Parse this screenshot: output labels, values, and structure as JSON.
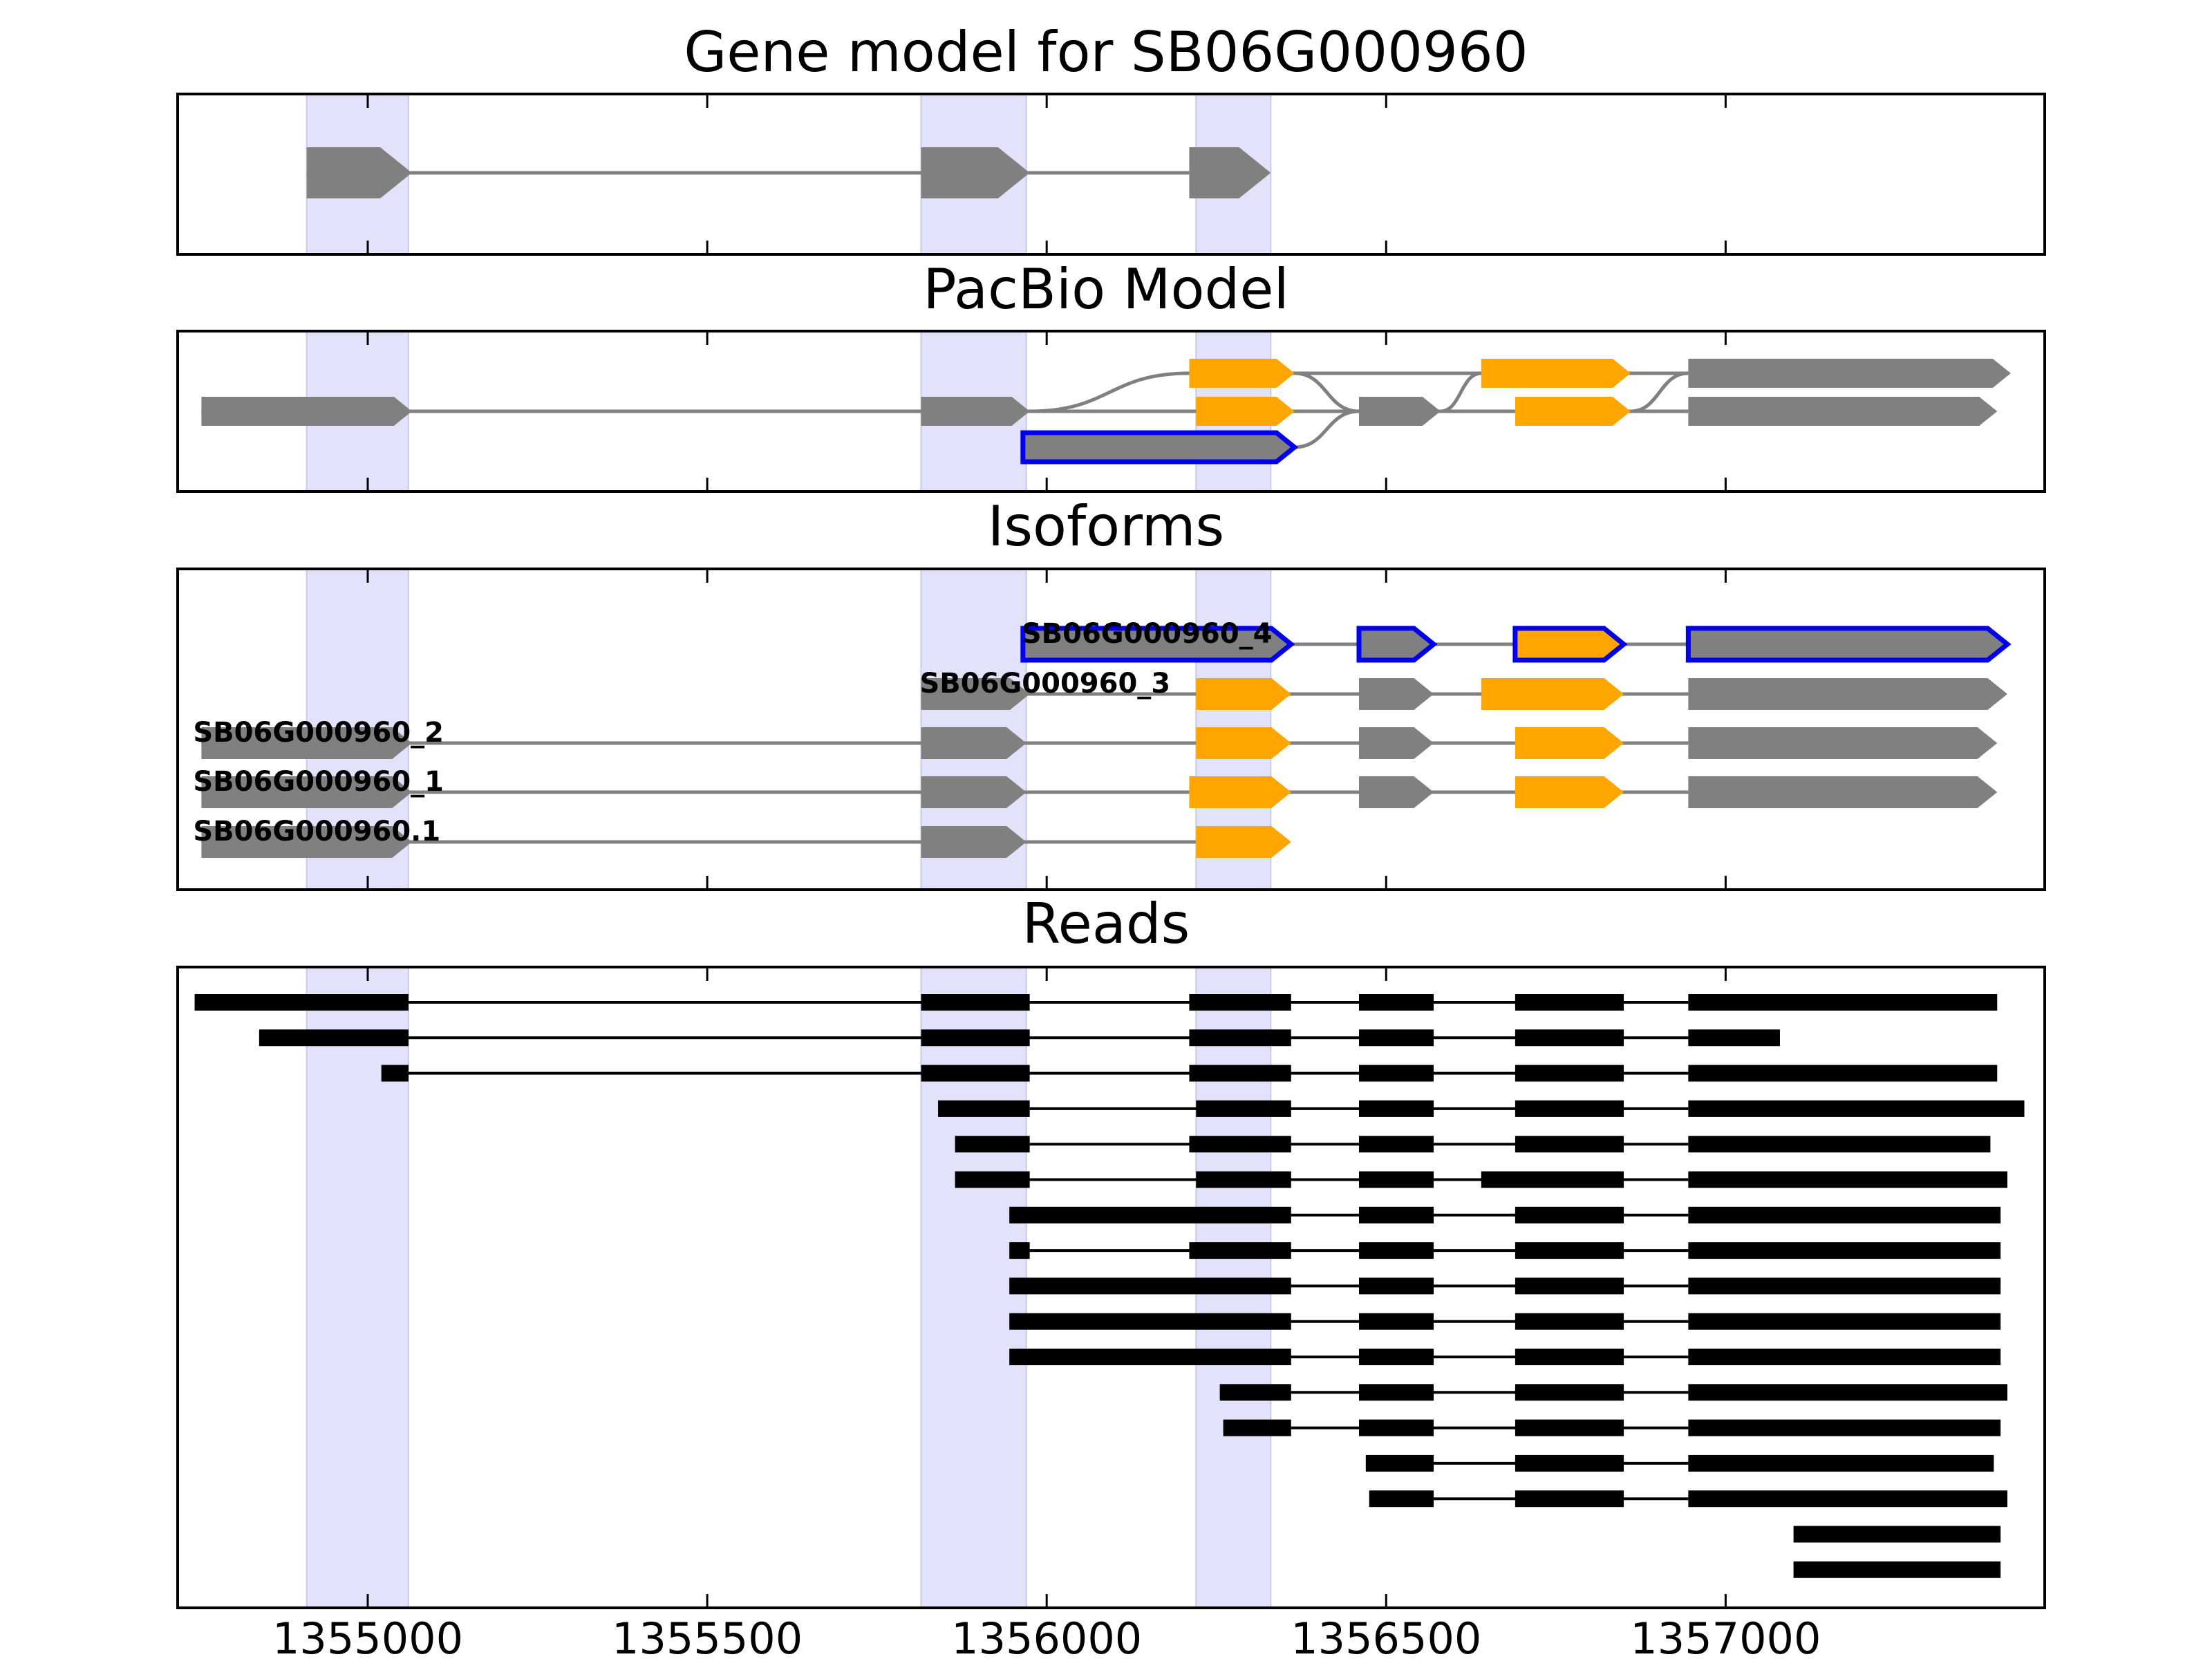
{
  "colors": {
    "highlight": "#e2e2fb",
    "exon_gray": "#808080",
    "exon_orange": "#ffa500",
    "selected_outline": "#0000ee",
    "read_black": "#000000",
    "intron_gray": "#808080"
  },
  "chart_data": {
    "type": "gene-model-tracks",
    "x_axis": {
      "xlim": [
        1354720,
        1357470
      ],
      "ticks": [
        1355000,
        1355500,
        1356000,
        1356500,
        1357000
      ],
      "tick_labels": [
        "1355000",
        "1355500",
        "1356000",
        "1356500",
        "1357000"
      ]
    },
    "highlight_regions": [
      [
        1354910,
        1355060
      ],
      [
        1355815,
        1355970
      ],
      [
        1356220,
        1356330
      ]
    ],
    "panels": [
      {
        "id": "gene",
        "title": "Gene model for SB06G000960",
        "rows": [
          {
            "strand": "+",
            "exons": [
              [
                1354910,
                1355065,
                "gray"
              ],
              [
                1355815,
                1355975,
                "gray"
              ],
              [
                1356210,
                1356330,
                "gray"
              ]
            ]
          }
        ]
      },
      {
        "id": "pacbio",
        "title": "PacBio Model",
        "rows": [
          {
            "strand": "+",
            "exons": [
              [
                1356210,
                1356365,
                "orange"
              ],
              [
                1356640,
                1356860,
                "orange"
              ],
              [
                1356945,
                1357420,
                "gray"
              ]
            ]
          },
          {
            "strand": "+",
            "exons": [
              [
                1354755,
                1355065,
                "gray"
              ],
              [
                1355815,
                1355975,
                "gray"
              ],
              [
                1356220,
                1356365,
                "orange"
              ],
              [
                1356460,
                1356580,
                "gray"
              ],
              [
                1356690,
                1356860,
                "orange"
              ],
              [
                1356945,
                1357400,
                "gray"
              ]
            ]
          },
          {
            "strand": "+",
            "selected": true,
            "exons": [
              [
                1355965,
                1356365,
                "gray"
              ]
            ]
          }
        ]
      },
      {
        "id": "isoforms",
        "title": "Isoforms",
        "rows": [
          {
            "label": "SB06G000960_4",
            "selected": true,
            "exons": [
              [
                1355965,
                1356360,
                "gray"
              ],
              [
                1356460,
                1356570,
                "gray"
              ],
              [
                1356690,
                1356850,
                "orange"
              ],
              [
                1356945,
                1357415,
                "gray"
              ]
            ]
          },
          {
            "label": "SB06G000960_3",
            "exons": [
              [
                1355815,
                1355975,
                "gray"
              ],
              [
                1356220,
                1356360,
                "orange"
              ],
              [
                1356460,
                1356570,
                "gray"
              ],
              [
                1356640,
                1356850,
                "orange"
              ],
              [
                1356945,
                1357415,
                "gray"
              ]
            ]
          },
          {
            "label": "SB06G000960_2",
            "exons": [
              [
                1354755,
                1355065,
                "gray"
              ],
              [
                1355815,
                1355970,
                "gray"
              ],
              [
                1356220,
                1356360,
                "orange"
              ],
              [
                1356460,
                1356570,
                "gray"
              ],
              [
                1356690,
                1356850,
                "orange"
              ],
              [
                1356945,
                1357400,
                "gray"
              ]
            ]
          },
          {
            "label": "SB06G000960_1",
            "exons": [
              [
                1354755,
                1355065,
                "gray"
              ],
              [
                1355815,
                1355970,
                "gray"
              ],
              [
                1356210,
                1356360,
                "orange"
              ],
              [
                1356460,
                1356570,
                "gray"
              ],
              [
                1356690,
                1356850,
                "orange"
              ],
              [
                1356945,
                1357400,
                "gray"
              ]
            ]
          },
          {
            "label": "SB06G000960.1",
            "exons": [
              [
                1354755,
                1355065,
                "gray"
              ],
              [
                1355815,
                1355970,
                "gray"
              ],
              [
                1356220,
                1356360,
                "orange"
              ]
            ]
          }
        ]
      },
      {
        "id": "reads",
        "title": "Reads",
        "rows": [
          {
            "exons": [
              [
                1354745,
                1355060
              ],
              [
                1355815,
                1355975
              ],
              [
                1356210,
                1356360
              ],
              [
                1356460,
                1356570
              ],
              [
                1356690,
                1356850
              ],
              [
                1356945,
                1357400
              ]
            ]
          },
          {
            "exons": [
              [
                1354840,
                1355060
              ],
              [
                1355815,
                1355975
              ],
              [
                1356210,
                1356360
              ],
              [
                1356460,
                1356570
              ],
              [
                1356690,
                1356850
              ],
              [
                1356945,
                1357080
              ]
            ]
          },
          {
            "exons": [
              [
                1355020,
                1355060
              ],
              [
                1355815,
                1355975
              ],
              [
                1356210,
                1356360
              ],
              [
                1356460,
                1356570
              ],
              [
                1356690,
                1356850
              ],
              [
                1356945,
                1357400
              ]
            ]
          },
          {
            "exons": [
              [
                1355840,
                1355975
              ],
              [
                1356220,
                1356360
              ],
              [
                1356460,
                1356570
              ],
              [
                1356690,
                1356850
              ],
              [
                1356945,
                1357440
              ]
            ]
          },
          {
            "exons": [
              [
                1355865,
                1355975
              ],
              [
                1356210,
                1356360
              ],
              [
                1356460,
                1356570
              ],
              [
                1356690,
                1356850
              ],
              [
                1356945,
                1357390
              ]
            ]
          },
          {
            "exons": [
              [
                1355865,
                1355975
              ],
              [
                1356220,
                1356360
              ],
              [
                1356460,
                1356570
              ],
              [
                1356640,
                1356850
              ],
              [
                1356945,
                1357415
              ]
            ]
          },
          {
            "exons": [
              [
                1355945,
                1356360
              ],
              [
                1356460,
                1356570
              ],
              [
                1356690,
                1356850
              ],
              [
                1356945,
                1357405
              ]
            ]
          },
          {
            "exons": [
              [
                1355945,
                1355975
              ],
              [
                1356210,
                1356360
              ],
              [
                1356460,
                1356570
              ],
              [
                1356690,
                1356850
              ],
              [
                1356945,
                1357405
              ]
            ]
          },
          {
            "exons": [
              [
                1355945,
                1356360
              ],
              [
                1356460,
                1356570
              ],
              [
                1356690,
                1356850
              ],
              [
                1356945,
                1357405
              ]
            ]
          },
          {
            "exons": [
              [
                1355945,
                1356360
              ],
              [
                1356460,
                1356570
              ],
              [
                1356690,
                1356850
              ],
              [
                1356945,
                1357405
              ]
            ]
          },
          {
            "exons": [
              [
                1355945,
                1356360
              ],
              [
                1356460,
                1356570
              ],
              [
                1356690,
                1356850
              ],
              [
                1356945,
                1357405
              ]
            ]
          },
          {
            "exons": [
              [
                1356255,
                1356360
              ],
              [
                1356460,
                1356570
              ],
              [
                1356690,
                1356850
              ],
              [
                1356945,
                1357415
              ]
            ]
          },
          {
            "exons": [
              [
                1356260,
                1356360
              ],
              [
                1356460,
                1356570
              ],
              [
                1356690,
                1356850
              ],
              [
                1356945,
                1357405
              ]
            ]
          },
          {
            "exons": [
              [
                1356470,
                1356570
              ],
              [
                1356690,
                1356850
              ],
              [
                1356945,
                1357395
              ]
            ]
          },
          {
            "exons": [
              [
                1356475,
                1356570
              ],
              [
                1356690,
                1356850
              ],
              [
                1356945,
                1357415
              ]
            ]
          },
          {
            "exons": [
              [
                1357100,
                1357405
              ]
            ]
          },
          {
            "exons": [
              [
                1357100,
                1357405
              ]
            ]
          }
        ]
      }
    ]
  }
}
